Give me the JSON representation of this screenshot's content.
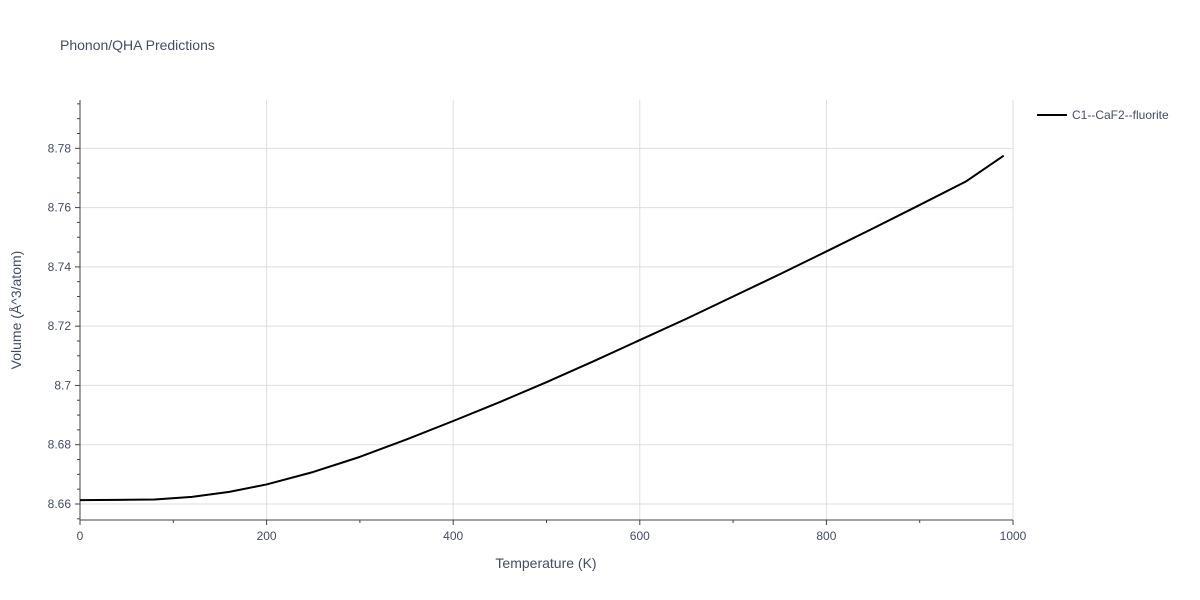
{
  "chart_data": {
    "type": "line",
    "title": "Phonon/QHA Predictions",
    "xlabel": "Temperature (K)",
    "ylabel": "Volume (Å^3/atom)",
    "xlim": [
      0,
      1000
    ],
    "ylim": [
      8.6546,
      8.7963
    ],
    "x_ticks": [
      0,
      200,
      400,
      600,
      800,
      1000
    ],
    "x_tick_labels": [
      "0",
      "200",
      "400",
      "600",
      "800",
      "1000"
    ],
    "y_ticks": [
      8.66,
      8.68,
      8.7,
      8.72,
      8.74,
      8.76,
      8.78
    ],
    "y_tick_labels": [
      "8.66",
      "8.68",
      "8.7",
      "8.72",
      "8.74",
      "8.76",
      "8.78"
    ],
    "grid": true,
    "legend_position": "top-right",
    "series": [
      {
        "name": "C1--CaF2--fluorite",
        "color": "#000000",
        "x": [
          0,
          40,
          80,
          120,
          160,
          200,
          250,
          300,
          350,
          400,
          450,
          500,
          550,
          600,
          650,
          700,
          750,
          800,
          850,
          900,
          950,
          990
        ],
        "y": [
          8.6613,
          8.6614,
          8.6615,
          8.6624,
          8.6641,
          8.6666,
          8.6708,
          8.6759,
          8.6818,
          8.688,
          8.6944,
          8.7011,
          8.7081,
          8.7153,
          8.7225,
          8.73,
          8.7375,
          8.7452,
          8.753,
          8.7609,
          8.7689,
          8.7775
        ]
      }
    ]
  }
}
